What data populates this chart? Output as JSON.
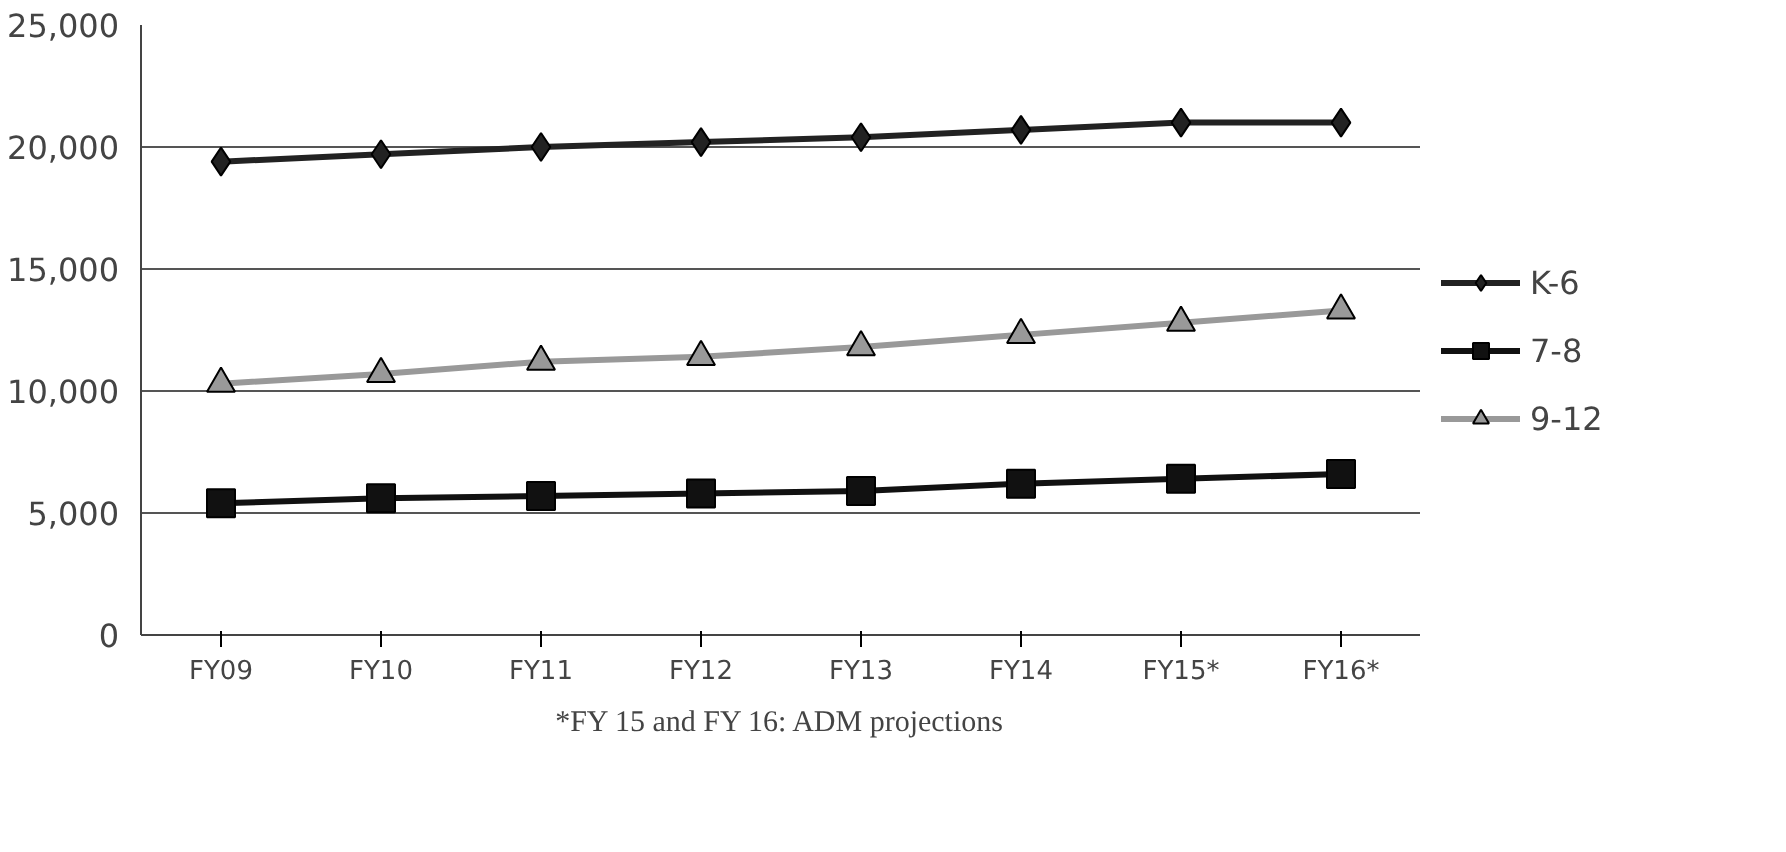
{
  "chart_data": {
    "type": "line",
    "categories": [
      "FY09",
      "FY10",
      "FY11",
      "FY12",
      "FY13",
      "FY14",
      "FY15*",
      "FY16*"
    ],
    "series": [
      {
        "name": "K-6",
        "color": "#222222",
        "marker": "diamond",
        "values": [
          19400,
          19700,
          20000,
          20200,
          20400,
          20700,
          21000,
          21000
        ]
      },
      {
        "name": "7-8",
        "color": "#111111",
        "marker": "square",
        "values": [
          5400,
          5600,
          5700,
          5800,
          5900,
          6200,
          6400,
          6600
        ]
      },
      {
        "name": "9-12",
        "color": "#999999",
        "marker": "triangle",
        "values": [
          10300,
          10700,
          11200,
          11400,
          11800,
          12300,
          12800,
          13300
        ]
      }
    ],
    "ylim": [
      0,
      25000
    ],
    "yticks": [
      {
        "value": 0,
        "label": "0"
      },
      {
        "value": 5000,
        "label": "5,000"
      },
      {
        "value": 10000,
        "label": "10,000"
      },
      {
        "value": 15000,
        "label": "15,000"
      },
      {
        "value": 20000,
        "label": "20,000"
      },
      {
        "value": 25000,
        "label": "25,000"
      }
    ],
    "grid": "y",
    "legend": "right",
    "annotations": [
      "*FY 15 and FY 16: ADM projections"
    ]
  }
}
